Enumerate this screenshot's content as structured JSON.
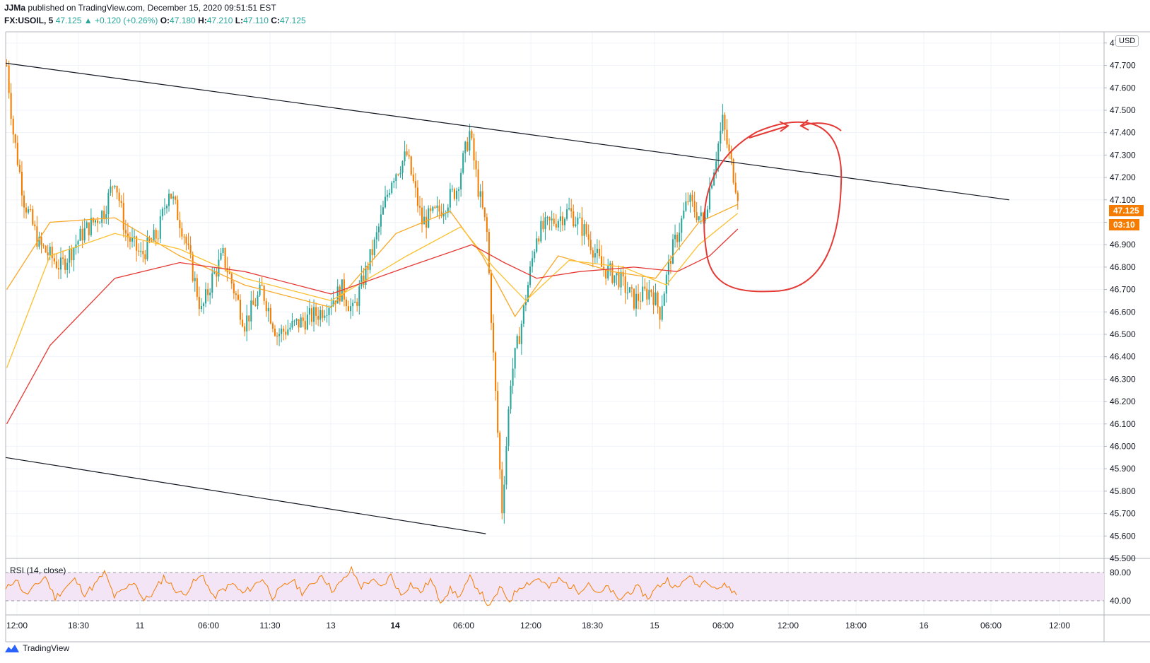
{
  "header": {
    "author": "JJMa",
    "published_text": "published on TradingView.com, December 15, 2020 09:51:51 EST",
    "symbol": "FX:USOIL, 5",
    "last": "47.125",
    "change": "▲ +0.120 (+0.26%)",
    "o_label": "O:",
    "o_val": "47.180",
    "h_label": "H:",
    "h_val": "47.210",
    "l_label": "L:",
    "l_val": "47.110",
    "c_label": "C:",
    "c_val": "47.125"
  },
  "axis": {
    "currency": "USD",
    "price_tag": "47.125",
    "countdown": "03:10",
    "rsi_label": "RSI (14, close)"
  },
  "footer": {
    "brand": "TradingView"
  },
  "colors": {
    "up": "#26a69a",
    "down": "#f57c00",
    "ema_fast": "#f9a825",
    "ema_mid": "#fbc02d",
    "ma_slow": "#e53935",
    "rsi": "#f57c00",
    "rsi_band": "#f3e5f5",
    "annotation": "#e53935"
  },
  "chart_data": [
    {
      "type": "candlestick",
      "title": "FX:USOIL, 5",
      "y_ticks": [
        "45.500",
        "45.600",
        "45.700",
        "45.800",
        "45.900",
        "46.000",
        "46.100",
        "46.200",
        "46.300",
        "46.400",
        "46.500",
        "46.600",
        "46.700",
        "46.800",
        "46.900",
        "47.000",
        "47.100",
        "47.200",
        "47.300",
        "47.400",
        "47.500",
        "47.600",
        "47.700",
        "47.800"
      ],
      "ylim": [
        45.5,
        47.85
      ],
      "x_ticks": [
        "12:00",
        "18:30",
        "11",
        "06:00",
        "11:30",
        "13",
        "14",
        "06:00",
        "12:00",
        "18:30",
        "15",
        "06:00",
        "12:00",
        "18:00",
        "16",
        "06:00",
        "12:00"
      ],
      "close_path": [
        [
          0,
          47.7
        ],
        [
          3,
          47.4
        ],
        [
          8,
          47.1
        ],
        [
          15,
          46.9
        ],
        [
          25,
          46.8
        ],
        [
          35,
          46.95
        ],
        [
          45,
          47.05
        ],
        [
          50,
          47.2
        ],
        [
          55,
          46.95
        ],
        [
          62,
          46.85
        ],
        [
          70,
          46.95
        ],
        [
          75,
          47.15
        ],
        [
          82,
          46.95
        ],
        [
          90,
          46.6
        ],
        [
          95,
          46.75
        ],
        [
          100,
          46.85
        ],
        [
          110,
          46.55
        ],
        [
          118,
          46.7
        ],
        [
          125,
          46.5
        ],
        [
          135,
          46.55
        ],
        [
          145,
          46.6
        ],
        [
          155,
          46.7
        ],
        [
          160,
          46.6
        ],
        [
          170,
          46.9
        ],
        [
          178,
          47.2
        ],
        [
          185,
          47.3
        ],
        [
          192,
          47.0
        ],
        [
          200,
          47.05
        ],
        [
          208,
          47.15
        ],
        [
          214,
          47.4
        ],
        [
          218,
          47.15
        ],
        [
          222,
          46.95
        ],
        [
          225,
          46.4
        ],
        [
          229,
          45.72
        ],
        [
          233,
          46.3
        ],
        [
          238,
          46.55
        ],
        [
          245,
          46.95
        ],
        [
          252,
          47.0
        ],
        [
          260,
          47.05
        ],
        [
          268,
          46.95
        ],
        [
          275,
          46.8
        ],
        [
          283,
          46.75
        ],
        [
          290,
          46.65
        ],
        [
          298,
          46.7
        ],
        [
          302,
          46.6
        ],
        [
          307,
          46.85
        ],
        [
          315,
          47.1
        ],
        [
          322,
          47.0
        ],
        [
          327,
          47.25
        ],
        [
          331,
          47.45
        ],
        [
          334,
          47.3
        ],
        [
          338,
          47.13
        ]
      ],
      "overlays": [
        {
          "name": "",
          "color": "#f9a825",
          "values": [
            [
              0,
              46.7
            ],
            [
              20,
              47.0
            ],
            [
              50,
              47.02
            ],
            [
              80,
              46.85
            ],
            [
              110,
              46.72
            ],
            [
              150,
              46.62
            ],
            [
              180,
              46.95
            ],
            [
              205,
              47.05
            ],
            [
              220,
              46.85
            ],
            [
              235,
              46.58
            ],
            [
              255,
              46.85
            ],
            [
              280,
              46.78
            ],
            [
              300,
              46.75
            ],
            [
              320,
              47.0
            ],
            [
              338,
              47.08
            ]
          ]
        },
        {
          "name": "",
          "color": "#fbc02d",
          "values": [
            [
              0,
              46.35
            ],
            [
              20,
              46.85
            ],
            [
              50,
              46.95
            ],
            [
              80,
              46.88
            ],
            [
              110,
              46.75
            ],
            [
              150,
              46.65
            ],
            [
              185,
              46.85
            ],
            [
              210,
              46.98
            ],
            [
              225,
              46.8
            ],
            [
              240,
              46.65
            ],
            [
              260,
              46.83
            ],
            [
              285,
              46.8
            ],
            [
              305,
              46.72
            ],
            [
              320,
              46.9
            ],
            [
              338,
              47.04
            ]
          ]
        },
        {
          "name": "",
          "color": "#e53935",
          "values": [
            [
              0,
              46.1
            ],
            [
              20,
              46.45
            ],
            [
              50,
              46.75
            ],
            [
              80,
              46.82
            ],
            [
              110,
              46.78
            ],
            [
              150,
              46.68
            ],
            [
              185,
              46.8
            ],
            [
              215,
              46.9
            ],
            [
              230,
              46.82
            ],
            [
              245,
              46.75
            ],
            [
              265,
              46.78
            ],
            [
              290,
              46.8
            ],
            [
              310,
              46.78
            ],
            [
              325,
              46.85
            ],
            [
              338,
              46.97
            ]
          ]
        }
      ],
      "drawings": [
        {
          "kind": "trendline",
          "from": [
            0,
            47.71
          ],
          "to": [
            464,
            47.1
          ]
        },
        {
          "kind": "trendline",
          "from": [
            0,
            45.95
          ],
          "to": [
            222,
            45.61
          ]
        }
      ]
    },
    {
      "type": "line",
      "title": "RSI (14, close)",
      "y_ticks": [
        "80.00",
        "40.00"
      ],
      "ylim": [
        20,
        95
      ],
      "band": [
        80,
        40
      ],
      "values": [
        55,
        72,
        48,
        60,
        75,
        44,
        58,
        70,
        50,
        62,
        80,
        46,
        55,
        68,
        40,
        52,
        74,
        58,
        48,
        66,
        76,
        44,
        56,
        64,
        50,
        60,
        72,
        46,
        58,
        70,
        52,
        62,
        78,
        55,
        66,
        84,
        60,
        70,
        58,
        76,
        48,
        64,
        52,
        70,
        40,
        56,
        46,
        72,
        54,
        30,
        58,
        40,
        60,
        66,
        72,
        58,
        70,
        62,
        54,
        66,
        48,
        60,
        40,
        52,
        58,
        44,
        60,
        70,
        56,
        76,
        62,
        70,
        58,
        62,
        48
      ]
    }
  ]
}
